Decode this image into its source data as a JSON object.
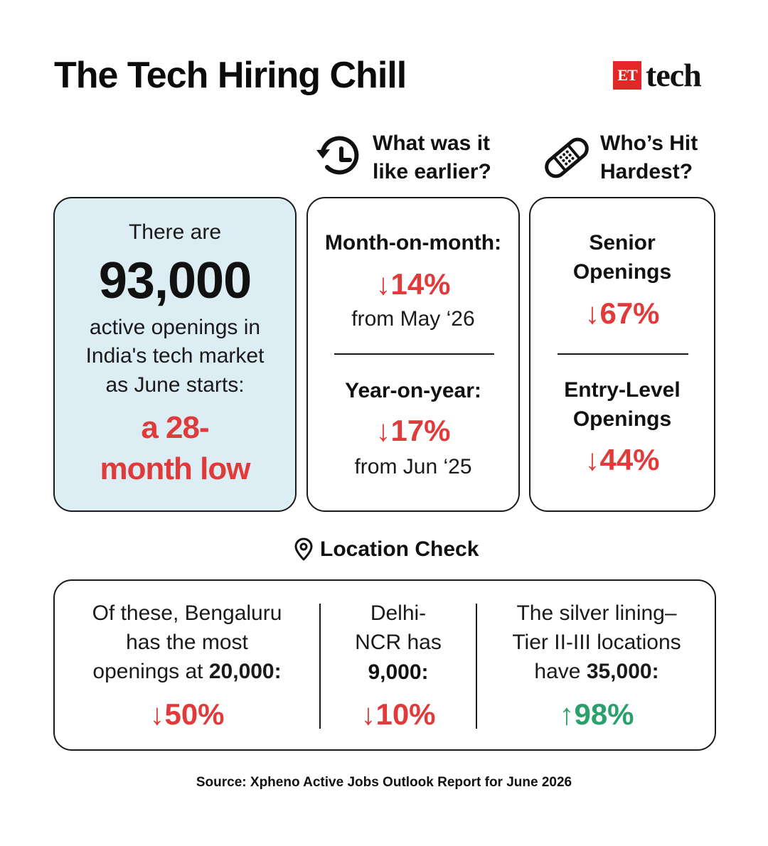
{
  "header": {
    "title": "The Tech Hiring Chill",
    "logo_badge": "ET",
    "logo_word": "tech"
  },
  "columns": {
    "earlier": {
      "title_line1": "What was it",
      "title_line2": "like earlier?",
      "icon": "history-clock-icon"
    },
    "hit": {
      "title_line1": "Who’s Hit",
      "title_line2": "Hardest?",
      "icon": "bandage-icon"
    }
  },
  "summary": {
    "line1": "There are",
    "number": "93,000",
    "line2": "active openings in",
    "line3": "India's tech market",
    "line4": "as June starts:",
    "highlight1": "a 28-",
    "highlight2": "month low"
  },
  "earlier": {
    "mom_label": "Month-on-month:",
    "mom_value": "↓14%",
    "mom_from": "from May ‘26",
    "yoy_label": "Year-on-year:",
    "yoy_value": "↓17%",
    "yoy_from": "from Jun ‘25"
  },
  "hit": {
    "senior_line1": "Senior",
    "senior_line2": "Openings",
    "senior_value": "↓67%",
    "entry_line1": "Entry-Level",
    "entry_line2": "Openings",
    "entry_value": "↓44%"
  },
  "location": {
    "heading": "Location Check",
    "icon": "location-pin-icon",
    "bengaluru": {
      "line1": "Of these, Bengaluru",
      "line2": "has the most",
      "line3_pre": "openings at ",
      "line3_bold": "20,000:",
      "value": "↓50%"
    },
    "delhi": {
      "line1": "Delhi-",
      "line2": "NCR has",
      "line3_bold": "9,000:",
      "value": "↓10%"
    },
    "tier": {
      "line1": "The silver lining–",
      "line2": "Tier II-III locations",
      "line3_pre": "have ",
      "line3_bold": "35,000:",
      "value": "↑98%"
    }
  },
  "source": "Source: Xpheno Active Jobs Outlook Report for June 2026",
  "colors": {
    "accent_red": "#e03a3a",
    "accent_green": "#2aa06a",
    "summary_bg": "#dcedf3",
    "logo_red": "#e32626"
  }
}
